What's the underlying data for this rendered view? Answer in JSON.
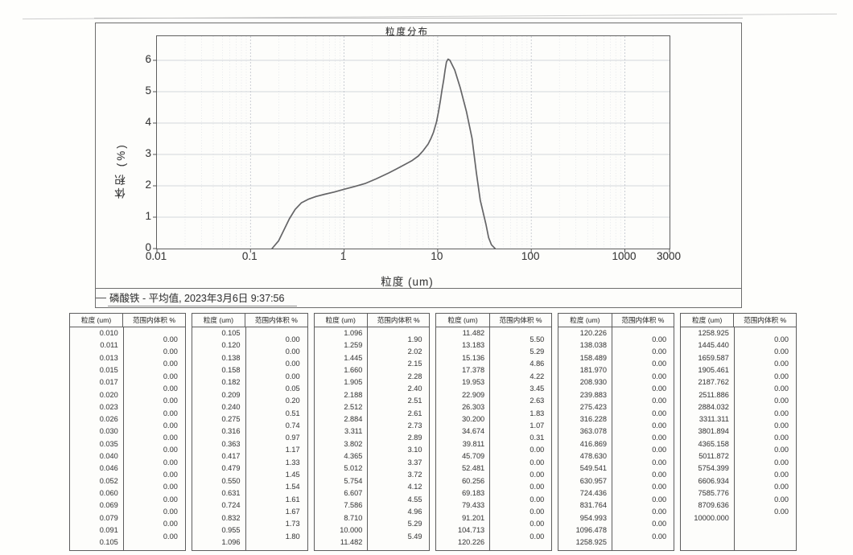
{
  "chart": {
    "title": "粒度分布",
    "ylabel": "体积 (%)",
    "xlabel": "粒度 (um)",
    "legend": "磷酸铁 - 平均值, 2023年3月6日 9:37:56",
    "y_ticks": [
      0,
      1,
      2,
      3,
      4,
      5,
      6
    ],
    "x_ticks": [
      "0.01",
      "0.1",
      "1",
      "10",
      "100",
      "1000",
      "3000"
    ]
  },
  "chart_data": {
    "type": "line",
    "title": "粒度分布",
    "xlabel": "粒度 (um)",
    "ylabel": "体积 (%)",
    "x_scale": "log",
    "xlim": [
      0.01,
      3000
    ],
    "ylim": [
      0,
      6.77
    ],
    "grid": true,
    "legend_position": "bottom-left",
    "series": [
      {
        "name": "磷酸铁 - 平均值, 2023年3月6日 9:37:56",
        "points": [
          [
            0.17,
            0
          ],
          [
            0.2,
            0.25
          ],
          [
            0.23,
            0.62
          ],
          [
            0.26,
            0.95
          ],
          [
            0.3,
            1.25
          ],
          [
            0.35,
            1.46
          ],
          [
            0.42,
            1.58
          ],
          [
            0.5,
            1.66
          ],
          [
            0.62,
            1.73
          ],
          [
            0.78,
            1.8
          ],
          [
            1.0,
            1.89
          ],
          [
            1.3,
            1.98
          ],
          [
            1.7,
            2.08
          ],
          [
            2.2,
            2.22
          ],
          [
            3.0,
            2.41
          ],
          [
            3.6,
            2.53
          ],
          [
            4.4,
            2.67
          ],
          [
            5.3,
            2.8
          ],
          [
            6.2,
            2.95
          ],
          [
            7.0,
            3.12
          ],
          [
            7.9,
            3.33
          ],
          [
            8.5,
            3.52
          ],
          [
            9.0,
            3.7
          ],
          [
            9.7,
            4.03
          ],
          [
            10.2,
            4.36
          ],
          [
            10.7,
            4.72
          ],
          [
            11.1,
            5.05
          ],
          [
            11.6,
            5.38
          ],
          [
            12.0,
            5.69
          ],
          [
            12.4,
            5.95
          ],
          [
            12.9,
            6.04
          ],
          [
            13.5,
            6.0
          ],
          [
            15.2,
            5.69
          ],
          [
            17.4,
            5.13
          ],
          [
            20.3,
            4.36
          ],
          [
            23.3,
            3.51
          ],
          [
            25.9,
            2.41
          ],
          [
            28.5,
            1.54
          ],
          [
            32.8,
            0.77
          ],
          [
            35.0,
            0.35
          ],
          [
            37.5,
            0.12
          ],
          [
            41.0,
            0
          ]
        ]
      }
    ]
  },
  "tables": {
    "col_size": "粒度 (um)",
    "col_volume": "范围内体积 %",
    "groups": [
      {
        "sizes": [
          "0.010",
          "0.011",
          "0.013",
          "0.015",
          "0.017",
          "0.020",
          "0.023",
          "0.026",
          "0.030",
          "0.035",
          "0.040",
          "0.046",
          "0.052",
          "0.060",
          "0.069",
          "0.079",
          "0.091",
          "0.105"
        ],
        "volumes": [
          "0.00",
          "0.00",
          "0.00",
          "0.00",
          "0.00",
          "0.00",
          "0.00",
          "0.00",
          "0.00",
          "0.00",
          "0.00",
          "0.00",
          "0.00",
          "0.00",
          "0.00",
          "0.00",
          "0.00"
        ]
      },
      {
        "sizes": [
          "0.105",
          "0.120",
          "0.138",
          "0.158",
          "0.182",
          "0.209",
          "0.240",
          "0.275",
          "0.316",
          "0.363",
          "0.417",
          "0.479",
          "0.550",
          "0.631",
          "0.724",
          "0.832",
          "0.955",
          "1.096"
        ],
        "volumes": [
          "0.00",
          "0.00",
          "0.00",
          "0.00",
          "0.05",
          "0.20",
          "0.51",
          "0.74",
          "0.97",
          "1.17",
          "1.33",
          "1.45",
          "1.54",
          "1.61",
          "1.67",
          "1.73",
          "1.80"
        ]
      },
      {
        "sizes": [
          "1.096",
          "1.259",
          "1.445",
          "1.660",
          "1.905",
          "2.188",
          "2.512",
          "2.884",
          "3.311",
          "3.802",
          "4.365",
          "5.012",
          "5.754",
          "6.607",
          "7.586",
          "8.710",
          "10.000",
          "11.482"
        ],
        "volumes": [
          "1.90",
          "2.02",
          "2.15",
          "2.28",
          "2.40",
          "2.51",
          "2.61",
          "2.73",
          "2.89",
          "3.10",
          "3.37",
          "3.72",
          "4.12",
          "4.55",
          "4.96",
          "5.29",
          "5.49"
        ]
      },
      {
        "sizes": [
          "11.482",
          "13.183",
          "15.136",
          "17.378",
          "19.953",
          "22.909",
          "26.303",
          "30.200",
          "34.674",
          "39.811",
          "45.709",
          "52.481",
          "60.256",
          "69.183",
          "79.433",
          "91.201",
          "104.713",
          "120.226"
        ],
        "volumes": [
          "5.50",
          "5.29",
          "4.86",
          "4.22",
          "3.45",
          "2.63",
          "1.83",
          "1.07",
          "0.31",
          "0.00",
          "0.00",
          "0.00",
          "0.00",
          "0.00",
          "0.00",
          "0.00",
          "0.00"
        ]
      },
      {
        "sizes": [
          "120.226",
          "138.038",
          "158.489",
          "181.970",
          "208.930",
          "239.883",
          "275.423",
          "316.228",
          "363.078",
          "416.869",
          "478.630",
          "549.541",
          "630.957",
          "724.436",
          "831.764",
          "954.993",
          "1096.478",
          "1258.925"
        ],
        "volumes": [
          "0.00",
          "0.00",
          "0.00",
          "0.00",
          "0.00",
          "0.00",
          "0.00",
          "0.00",
          "0.00",
          "0.00",
          "0.00",
          "0.00",
          "0.00",
          "0.00",
          "0.00",
          "0.00",
          "0.00"
        ]
      },
      {
        "sizes": [
          "1258.925",
          "1445.440",
          "1659.587",
          "1905.461",
          "2187.762",
          "2511.886",
          "2884.032",
          "3311.311",
          "3801.894",
          "4365.158",
          "5011.872",
          "5754.399",
          "6606.934",
          "7585.776",
          "8709.636",
          "10000.000"
        ],
        "volumes": [
          "0.00",
          "0.00",
          "0.00",
          "0.00",
          "0.00",
          "0.00",
          "0.00",
          "0.00",
          "0.00",
          "0.00",
          "0.00",
          "0.00",
          "0.00",
          "0.00",
          "0.00"
        ]
      }
    ]
  },
  "colors": {
    "curve": "#58585a",
    "grid_major": "#b4b8c2",
    "grid_minor": "#d0d4dc",
    "grid_horizontal": "#b9bdc6",
    "border": "#5e5e5e",
    "text": "#3c3c3c"
  }
}
